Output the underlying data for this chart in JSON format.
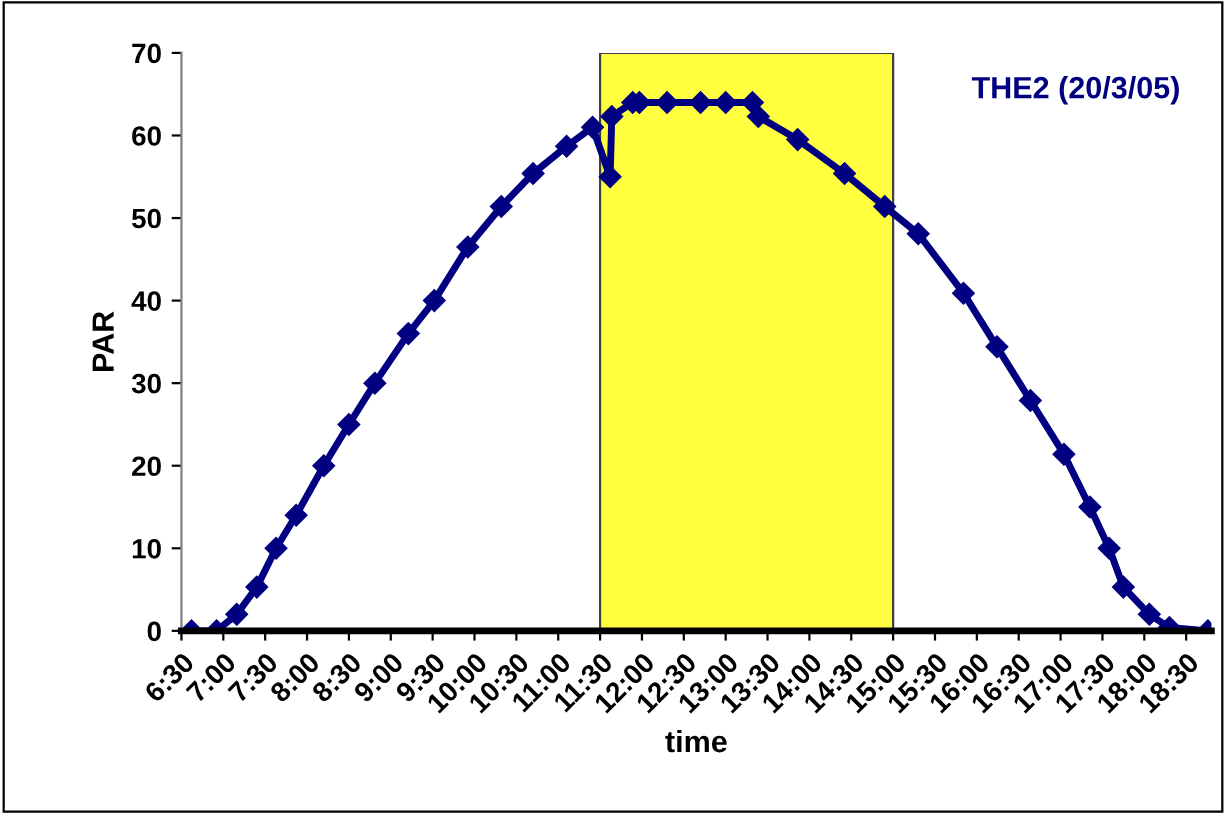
{
  "chart_data": {
    "type": "line",
    "title": "THE2 (20/3/05)",
    "xlabel": "time",
    "ylabel": "PAR",
    "x": [
      6.62,
      6.92,
      7.16,
      7.4,
      7.63,
      7.87,
      8.2,
      8.5,
      8.81,
      9.21,
      9.52,
      9.92,
      10.32,
      10.7,
      11.1,
      11.41,
      11.62,
      11.64,
      11.89,
      11.97,
      12.3,
      12.7,
      13.0,
      13.32,
      13.39,
      13.86,
      14.42,
      14.9,
      15.3,
      15.84,
      16.24,
      16.64,
      17.04,
      17.35,
      17.58,
      17.75,
      18.06,
      18.3,
      18.76
    ],
    "series": [
      {
        "color": "#000080",
        "values": [
          0,
          0,
          2,
          5.3,
          10,
          14,
          20,
          25,
          30,
          36,
          40,
          46.5,
          51.4,
          55.4,
          58.7,
          61,
          55,
          62.3,
          64,
          64,
          64,
          64,
          64,
          64,
          62.3,
          59.5,
          55.4,
          51.4,
          48.1,
          40.9,
          34.4,
          27.9,
          21.4,
          15,
          10,
          5.3,
          2,
          0.4,
          0
        ]
      }
    ],
    "marker": "diamond",
    "line_style": "solid",
    "grid": false,
    "legend": false,
    "xlim": [
      6.5,
      18.8
    ],
    "xticks": [
      {
        "value": 6.5,
        "label": "6:30"
      },
      {
        "value": 7,
        "label": "7:00"
      },
      {
        "value": 7.5,
        "label": "7:30"
      },
      {
        "value": 8,
        "label": "8:00"
      },
      {
        "value": 8.5,
        "label": "8:30"
      },
      {
        "value": 9,
        "label": "9:00"
      },
      {
        "value": 9.5,
        "label": "9:30"
      },
      {
        "value": 10,
        "label": "10:00"
      },
      {
        "value": 10.5,
        "label": "10:30"
      },
      {
        "value": 11,
        "label": "11:00"
      },
      {
        "value": 11.5,
        "label": "11:30"
      },
      {
        "value": 12,
        "label": "12:00"
      },
      {
        "value": 12.5,
        "label": "12:30"
      },
      {
        "value": 13,
        "label": "13:00"
      },
      {
        "value": 13.5,
        "label": "13:30"
      },
      {
        "value": 14,
        "label": "14:00"
      },
      {
        "value": 14.5,
        "label": "14:30"
      },
      {
        "value": 15,
        "label": "15:00"
      },
      {
        "value": 15.5,
        "label": "15:30"
      },
      {
        "value": 16,
        "label": "16:00"
      },
      {
        "value": 16.5,
        "label": "16:30"
      },
      {
        "value": 17,
        "label": "17:00"
      },
      {
        "value": 17.5,
        "label": "17:30"
      },
      {
        "value": 18,
        "label": "18:00"
      },
      {
        "value": 18.5,
        "label": "18:30"
      }
    ],
    "ylim": [
      0,
      70
    ],
    "yticks": [
      0,
      10,
      20,
      30,
      40,
      50,
      60,
      70
    ],
    "bands": [
      {
        "axis": "x",
        "from": 11.5,
        "to": 15.0,
        "color": "#ffff00"
      }
    ]
  }
}
